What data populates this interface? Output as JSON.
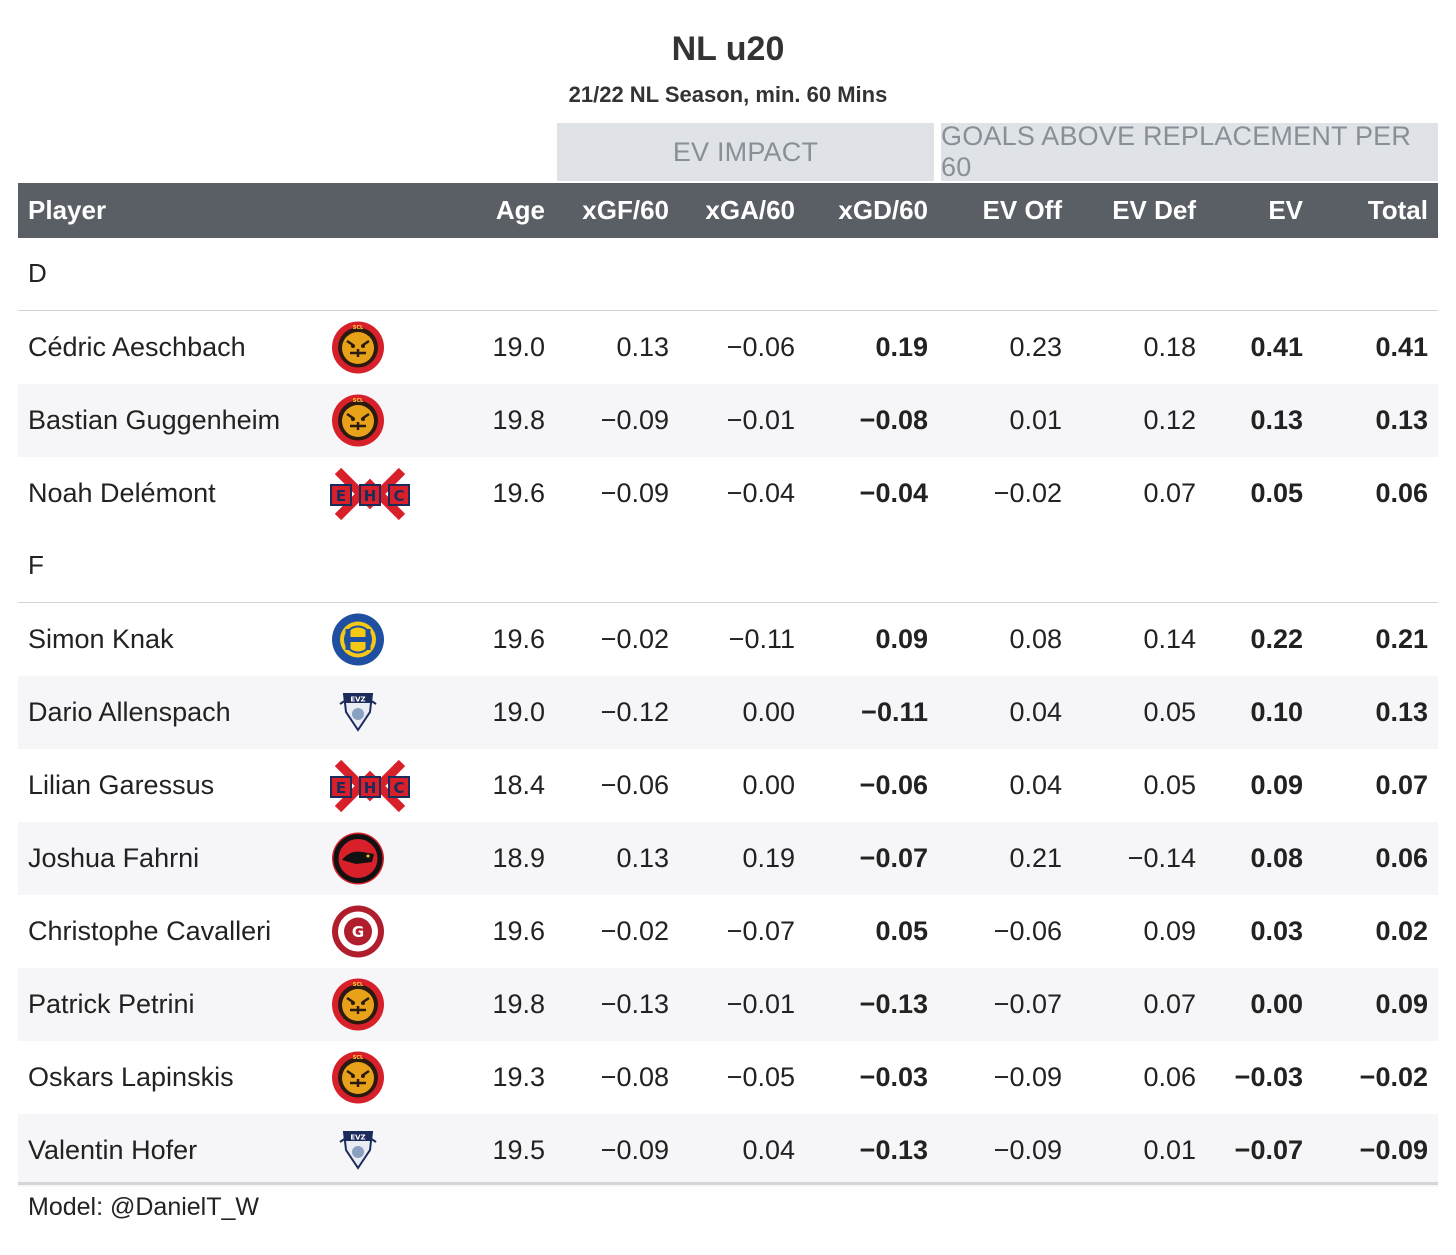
{
  "title": "NL u20",
  "subtitle": "21/22 NL Season, min. 60 Mins",
  "spanners": {
    "ev_impact": "EV IMPACT",
    "gar": "GOALS ABOVE REPLACEMENT PER 60"
  },
  "columns": {
    "player": "Player",
    "age": "Age",
    "xgf": "xGF/60",
    "xga": "xGA/60",
    "xgd": "xGD/60",
    "ev_off": "EV Off",
    "ev_def": "EV Def",
    "ev": "EV",
    "total": "Total"
  },
  "footer": "Model: @DanielT_W",
  "colors": {
    "header_bg": "#5a5f65",
    "spanner_bg": "#dfe2e6",
    "alt_row": "#f6f6f8"
  },
  "chart_data": {
    "type": "table",
    "groups": [
      {
        "label": "D",
        "rows": [
          {
            "player": "Cédric Aeschbach",
            "team_logo": "scl-tigers-logo",
            "age": "19.0",
            "xgf": "0.13",
            "xga": "−0.06",
            "xgd": "0.19",
            "ev_off": "0.23",
            "ev_def": "0.18",
            "ev": "0.41",
            "total": "0.41"
          },
          {
            "player": "Bastian Guggenheim",
            "team_logo": "scl-tigers-logo",
            "age": "19.8",
            "xgf": "−0.09",
            "xga": "−0.01",
            "xgd": "−0.08",
            "ev_off": "0.01",
            "ev_def": "0.12",
            "ev": "0.13",
            "total": "0.13"
          },
          {
            "player": "Noah Delémont",
            "team_logo": "ehc-biel-logo",
            "age": "19.6",
            "xgf": "−0.09",
            "xga": "−0.04",
            "xgd": "−0.04",
            "ev_off": "−0.02",
            "ev_def": "0.07",
            "ev": "0.05",
            "total": "0.06"
          }
        ]
      },
      {
        "label": "F",
        "rows": [
          {
            "player": "Simon Knak",
            "team_logo": "hc-davos-logo",
            "age": "19.6",
            "xgf": "−0.02",
            "xga": "−0.11",
            "xgd": "0.09",
            "ev_off": "0.08",
            "ev_def": "0.14",
            "ev": "0.22",
            "total": "0.21"
          },
          {
            "player": "Dario Allenspach",
            "team_logo": "evz-logo",
            "age": "19.0",
            "xgf": "−0.12",
            "xga": "0.00",
            "xgd": "−0.11",
            "ev_off": "0.04",
            "ev_def": "0.05",
            "ev": "0.10",
            "total": "0.13"
          },
          {
            "player": "Lilian Garessus",
            "team_logo": "ehc-biel-logo",
            "age": "18.4",
            "xgf": "−0.06",
            "xga": "0.00",
            "xgd": "−0.06",
            "ev_off": "0.04",
            "ev_def": "0.05",
            "ev": "0.09",
            "total": "0.07"
          },
          {
            "player": "Joshua Fahrni",
            "team_logo": "scb-logo",
            "age": "18.9",
            "xgf": "0.13",
            "xga": "0.19",
            "xgd": "−0.07",
            "ev_off": "0.21",
            "ev_def": "−0.14",
            "ev": "0.08",
            "total": "0.06"
          },
          {
            "player": "Christophe Cavalleri",
            "team_logo": "geneve-servette-logo",
            "age": "19.6",
            "xgf": "−0.02",
            "xga": "−0.07",
            "xgd": "0.05",
            "ev_off": "−0.06",
            "ev_def": "0.09",
            "ev": "0.03",
            "total": "0.02"
          },
          {
            "player": "Patrick Petrini",
            "team_logo": "scl-tigers-logo",
            "age": "19.8",
            "xgf": "−0.13",
            "xga": "−0.01",
            "xgd": "−0.13",
            "ev_off": "−0.07",
            "ev_def": "0.07",
            "ev": "0.00",
            "total": "0.09"
          },
          {
            "player": "Oskars Lapinskis",
            "team_logo": "scl-tigers-logo",
            "age": "19.3",
            "xgf": "−0.08",
            "xga": "−0.05",
            "xgd": "−0.03",
            "ev_off": "−0.09",
            "ev_def": "0.06",
            "ev": "−0.03",
            "total": "−0.02"
          },
          {
            "player": "Valentin Hofer",
            "team_logo": "evz-logo",
            "age": "19.5",
            "xgf": "−0.09",
            "xga": "0.04",
            "xgd": "−0.13",
            "ev_off": "−0.09",
            "ev_def": "0.01",
            "ev": "−0.07",
            "total": "−0.09"
          }
        ]
      }
    ]
  }
}
